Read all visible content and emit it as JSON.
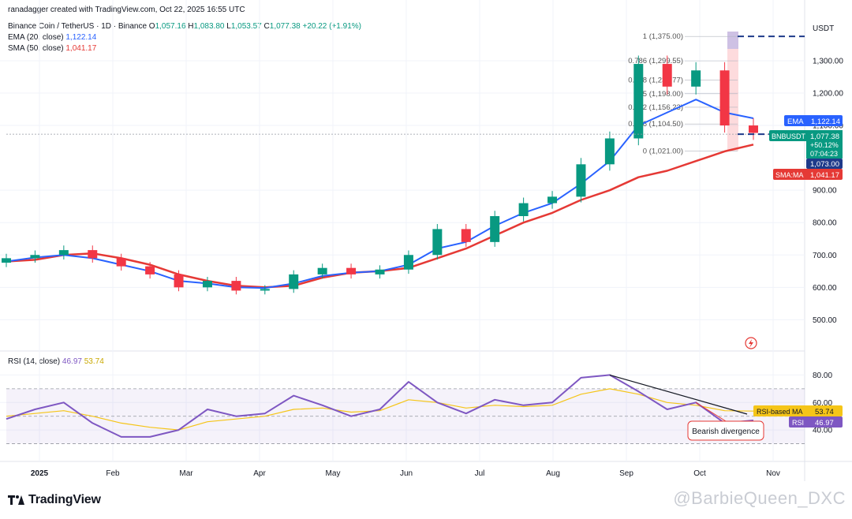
{
  "header": {
    "author_line": "ranadagger created with TradingView.com, Oct 22, 2025 16:55 UTC",
    "symbol": "Binance Coin / TetherUS · 1D · Binance",
    "ohlc": {
      "o_label": "O",
      "o": "1,057.16",
      "h_label": "H",
      "h": "1,083.80",
      "l_label": "L",
      "l": "1,053.57",
      "c_label": "C",
      "c": "1,077.38",
      "change": "+20.22 (+1.91%)"
    },
    "ema_legend_label": "EMA (20, close)",
    "ema_legend_value": "1,122.14",
    "sma_legend_label": "SMA (50, close)",
    "sma_legend_value": "1,041.17",
    "rsi_legend_label": "RSI (14, close)",
    "rsi_legend_value": "46.97",
    "rsi_ma_legend_value": "53.74"
  },
  "price_axis": {
    "currency": "USDT",
    "ticks": [
      "1,300.00",
      "1,200.00",
      "1,100.00",
      "900.00",
      "800.00",
      "700.00",
      "600.00",
      "500.00"
    ]
  },
  "rsi_axis": {
    "ticks": [
      "80.00",
      "60.00",
      "40.00"
    ]
  },
  "time_axis": {
    "ticks": [
      "2025",
      "Feb",
      "Mar",
      "Apr",
      "May",
      "Jun",
      "Jul",
      "Aug",
      "Sep",
      "Oct",
      "Nov"
    ]
  },
  "badges": {
    "ema": {
      "label": "EMA",
      "value": "1,122.14",
      "color": "#2962ff"
    },
    "price": {
      "label": "BNBUSDT",
      "value": "1,077.38",
      "change": "+50.12%",
      "countdown": "07:04:23",
      "color": "#089981"
    },
    "line_level": {
      "value": "1,073.00",
      "color": "#1e3a8a"
    },
    "sma": {
      "label": "SMA:MA",
      "value": "1,041.17",
      "color": "#e53935"
    },
    "rsi_ma": {
      "label": "RSI-based MA",
      "value": "53.74",
      "color": "#f5c518"
    },
    "rsi": {
      "label": "RSI",
      "value": "46.97",
      "color": "#7e57c2"
    }
  },
  "fib_levels": [
    {
      "label": "1 (1,375.00)",
      "level": 1375
    },
    {
      "label": "0.786 (1,299.55)",
      "level": 1299.55
    },
    {
      "label": "0.618 (1,239.77)",
      "level": 1239.77
    },
    {
      "label": "0.5 (1,198.00)",
      "level": 1198
    },
    {
      "label": "0.382 (1,156.23)",
      "level": 1156.23
    },
    {
      "label": "0.236 (1,104.50)",
      "level": 1104.5
    },
    {
      "label": "0 (1,021.00)",
      "level": 1021
    }
  ],
  "annotation": {
    "text": "Bearish divergence"
  },
  "branding": {
    "logo": "TradingView",
    "watermark": "@BarbieQueen_DXC"
  },
  "colors": {
    "up": "#089981",
    "down": "#f23645",
    "ema": "#2962ff",
    "sma": "#e53935",
    "rsi": "#7e57c2",
    "rsi_ma": "#f5c518"
  },
  "chart_data": {
    "type": "candlestick",
    "price_range": [
      440,
      1390
    ],
    "rsi_range": [
      20,
      90
    ],
    "rsi_bands": [
      30,
      70
    ],
    "horizontal_line_level": 1073,
    "x": [
      "Dec 20",
      "Jan 1",
      "Jan 15",
      "Feb 1",
      "Feb 15",
      "Mar 1",
      "Mar 15",
      "Apr 1",
      "Apr 15",
      "May 1",
      "May 15",
      "Jun 1",
      "Jun 15",
      "Jul 1",
      "Jul 15",
      "Jul 28",
      "Aug 10",
      "Aug 20",
      "Sep 1",
      "Sep 15",
      "Sep 25",
      "Oct 1",
      "Oct 7",
      "Oct 10",
      "Oct 13",
      "Oct 17",
      "Oct 22"
    ],
    "close": [
      690,
      700,
      715,
      690,
      665,
      640,
      600,
      620,
      590,
      595,
      640,
      660,
      640,
      655,
      700,
      780,
      740,
      820,
      860,
      880,
      980,
      1060,
      1290,
      1220,
      1270,
      1100,
      1077
    ],
    "ema20": [
      680,
      692,
      700,
      690,
      670,
      650,
      620,
      612,
      600,
      598,
      612,
      635,
      645,
      650,
      670,
      720,
      740,
      790,
      830,
      860,
      920,
      990,
      1100,
      1140,
      1180,
      1140,
      1122
    ],
    "sma50": [
      680,
      685,
      700,
      705,
      690,
      670,
      640,
      620,
      605,
      600,
      605,
      630,
      645,
      650,
      660,
      690,
      720,
      760,
      800,
      830,
      870,
      900,
      940,
      960,
      990,
      1020,
      1041
    ],
    "rsi": [
      48,
      55,
      60,
      45,
      35,
      35,
      40,
      55,
      50,
      52,
      65,
      58,
      50,
      55,
      75,
      60,
      52,
      62,
      58,
      60,
      78,
      80,
      68,
      55,
      60,
      45,
      46.97
    ],
    "rsi_ma": [
      50,
      52,
      54,
      50,
      45,
      42,
      40,
      46,
      48,
      50,
      55,
      56,
      53,
      54,
      62,
      60,
      56,
      58,
      57,
      58,
      66,
      70,
      66,
      60,
      58,
      54,
      53.74
    ]
  }
}
